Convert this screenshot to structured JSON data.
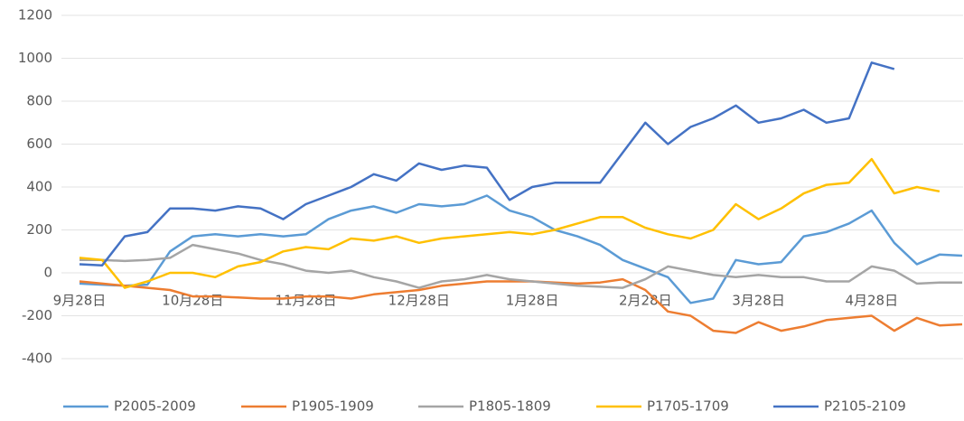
{
  "chart_data": {
    "type": "line",
    "categories": [
      "9月28日",
      null,
      null,
      null,
      null,
      "10月28日",
      null,
      null,
      null,
      null,
      "11月28日",
      null,
      null,
      null,
      null,
      "12月28日",
      null,
      null,
      null,
      null,
      "1月28日",
      null,
      null,
      null,
      null,
      "2月28日",
      null,
      null,
      null,
      null,
      "3月28日",
      null,
      null,
      null,
      null,
      "4月28日",
      null,
      null,
      null,
      null
    ],
    "series": [
      {
        "name": "P2005-2009",
        "color": "#5b9bd5",
        "values": [
          -50,
          -55,
          -60,
          -55,
          100,
          170,
          180,
          170,
          180,
          170,
          180,
          250,
          290,
          310,
          280,
          320,
          310,
          320,
          360,
          290,
          260,
          200,
          170,
          130,
          60,
          20,
          -20,
          -140,
          -120,
          60,
          40,
          50,
          170,
          190,
          230,
          290,
          140,
          40,
          85,
          80
        ]
      },
      {
        "name": "P1905-1909",
        "color": "#ed7d31",
        "values": [
          -40,
          -50,
          -60,
          -70,
          -80,
          -110,
          -110,
          -115,
          -120,
          -120,
          -110,
          -110,
          -120,
          -100,
          -90,
          -80,
          -60,
          -50,
          -40,
          -40,
          -40,
          -45,
          -50,
          -45,
          -30,
          -80,
          -180,
          -200,
          -270,
          -280,
          -230,
          -270,
          -250,
          -220,
          -210,
          -200,
          -270,
          -210,
          -245,
          -240
        ]
      },
      {
        "name": "P1805-1809",
        "color": "#a5a5a5",
        "values": [
          60,
          60,
          55,
          60,
          70,
          130,
          110,
          90,
          60,
          40,
          10,
          0,
          10,
          -20,
          -40,
          -70,
          -40,
          -30,
          -10,
          -30,
          -40,
          -50,
          -60,
          -65,
          -70,
          -30,
          30,
          10,
          -10,
          -20,
          -10,
          -20,
          -20,
          -40,
          -40,
          30,
          10,
          -50,
          -45,
          -45
        ]
      },
      {
        "name": "P1705-1709",
        "color": "#ffc000",
        "values": [
          70,
          60,
          -70,
          -40,
          0,
          0,
          -20,
          30,
          50,
          100,
          120,
          110,
          160,
          150,
          170,
          140,
          160,
          170,
          180,
          190,
          180,
          200,
          230,
          260,
          260,
          210,
          180,
          160,
          200,
          320,
          250,
          300,
          370,
          410,
          420,
          530,
          370,
          400,
          380,
          null
        ]
      },
      {
        "name": "P2105-2109",
        "color": "#4472c4",
        "values": [
          40,
          35,
          170,
          190,
          300,
          300,
          290,
          310,
          300,
          250,
          320,
          360,
          400,
          460,
          430,
          510,
          480,
          500,
          490,
          340,
          400,
          420,
          420,
          420,
          560,
          700,
          600,
          680,
          720,
          780,
          700,
          720,
          760,
          700,
          720,
          980,
          950,
          null,
          null,
          null
        ]
      }
    ],
    "ylim": [
      -400,
      1200
    ],
    "yticks": [
      -400,
      -200,
      0,
      200,
      400,
      600,
      800,
      1000,
      1200
    ],
    "grid": true
  }
}
